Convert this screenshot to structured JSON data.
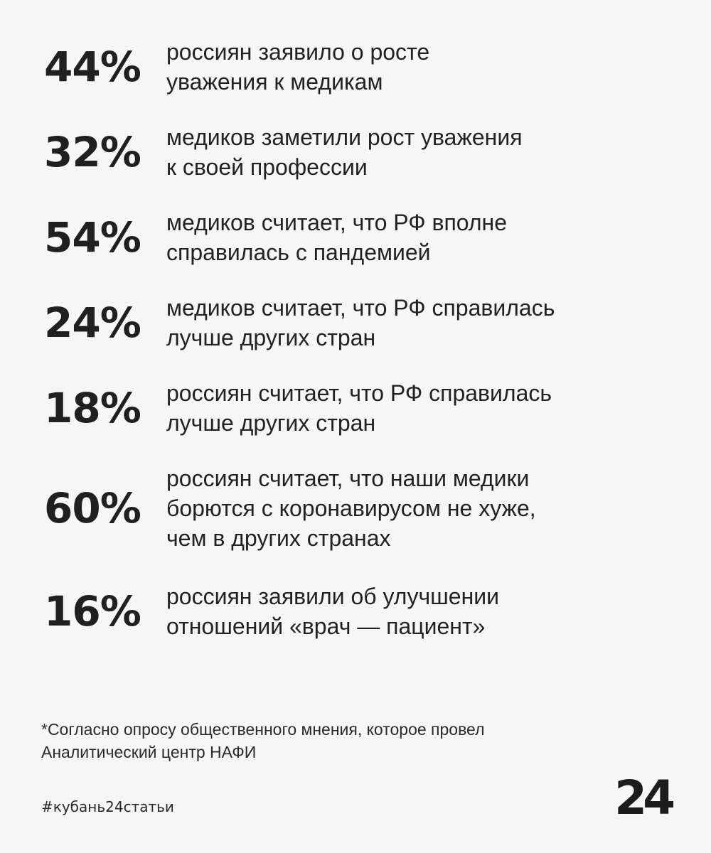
{
  "stats": [
    {
      "value": "44%",
      "lines": [
        "россиян заявило о росте",
        "уважения к медикам"
      ]
    },
    {
      "value": "32%",
      "lines": [
        "медиков заметили рост уважения",
        "к своей профессии"
      ]
    },
    {
      "value": "54%",
      "lines": [
        "медиков считает, что РФ вполне",
        "справилась с пандемией"
      ]
    },
    {
      "value": "24%",
      "lines": [
        "медиков считает, что РФ справилась",
        "лучше других стран"
      ]
    },
    {
      "value": "18%",
      "lines": [
        "россиян считает, что РФ справилась",
        "лучше других стран"
      ]
    },
    {
      "value": "60%",
      "lines": [
        "россиян считает, что наши медики",
        "борются с коронавирусом не хуже,",
        "чем в других странах"
      ]
    },
    {
      "value": "16%",
      "lines": [
        "россиян заявили об улучшении",
        "отношений «врач — пациент»"
      ]
    }
  ],
  "footnote": {
    "lines": [
      "*Согласно опросу общественного мнения, которое провел",
      "Аналитический центр НАФИ"
    ]
  },
  "hashtag": "#кубань24статьи",
  "logo": "24"
}
